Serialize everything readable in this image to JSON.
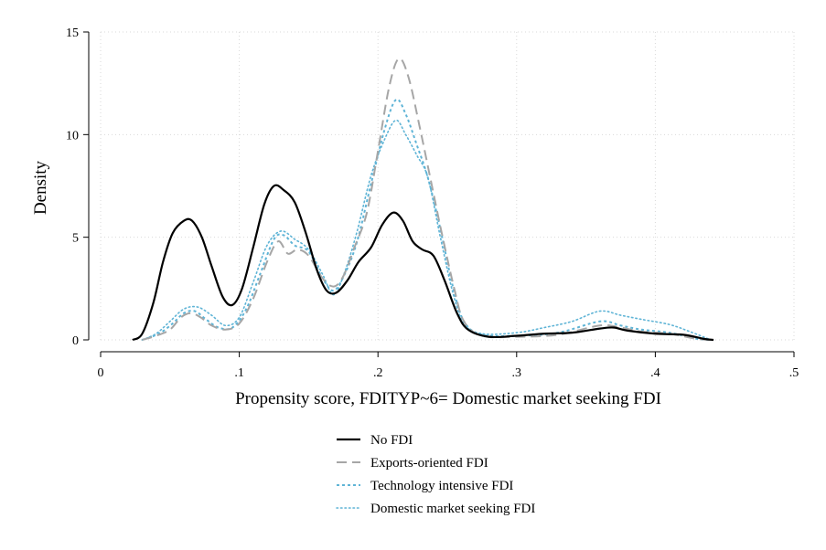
{
  "chart_data": {
    "type": "line",
    "title": "",
    "xlabel": "Propensity score, FDITYP~6= Domestic market seeking FDI",
    "ylabel": "Density",
    "xlim": [
      0,
      0.5
    ],
    "ylim": [
      0,
      15
    ],
    "x_ticks": [
      0,
      0.1,
      0.2,
      0.3,
      0.4,
      0.5
    ],
    "x_tick_labels": [
      "0",
      ".1",
      ".2",
      ".3",
      ".4",
      ".5"
    ],
    "y_ticks": [
      0,
      5,
      10,
      15
    ],
    "y_tick_labels": [
      "0",
      "5",
      "10",
      "15"
    ],
    "grid": true,
    "legend_position": "bottom",
    "series": [
      {
        "name": "No FDI",
        "color": "#000000",
        "style": "solid",
        "points": [
          [
            0.023,
            0.0
          ],
          [
            0.03,
            0.3
          ],
          [
            0.038,
            1.8
          ],
          [
            0.045,
            3.8
          ],
          [
            0.052,
            5.2
          ],
          [
            0.06,
            5.8
          ],
          [
            0.066,
            5.8
          ],
          [
            0.073,
            5.0
          ],
          [
            0.08,
            3.6
          ],
          [
            0.088,
            2.1
          ],
          [
            0.095,
            1.7
          ],
          [
            0.102,
            2.5
          ],
          [
            0.11,
            4.5
          ],
          [
            0.118,
            6.6
          ],
          [
            0.125,
            7.5
          ],
          [
            0.132,
            7.3
          ],
          [
            0.14,
            6.7
          ],
          [
            0.148,
            5.2
          ],
          [
            0.156,
            3.4
          ],
          [
            0.163,
            2.4
          ],
          [
            0.17,
            2.3
          ],
          [
            0.178,
            2.9
          ],
          [
            0.186,
            3.8
          ],
          [
            0.195,
            4.5
          ],
          [
            0.203,
            5.6
          ],
          [
            0.211,
            6.2
          ],
          [
            0.218,
            5.8
          ],
          [
            0.225,
            4.8
          ],
          [
            0.232,
            4.4
          ],
          [
            0.24,
            4.1
          ],
          [
            0.248,
            2.9
          ],
          [
            0.257,
            1.3
          ],
          [
            0.265,
            0.5
          ],
          [
            0.28,
            0.15
          ],
          [
            0.3,
            0.2
          ],
          [
            0.32,
            0.3
          ],
          [
            0.34,
            0.35
          ],
          [
            0.36,
            0.55
          ],
          [
            0.37,
            0.6
          ],
          [
            0.38,
            0.45
          ],
          [
            0.4,
            0.3
          ],
          [
            0.42,
            0.25
          ],
          [
            0.435,
            0.05
          ],
          [
            0.442,
            0.0
          ]
        ]
      },
      {
        "name": "Exports-oriented FDI",
        "color": "#a6a6a6",
        "style": "dashed",
        "points": [
          [
            0.03,
            0.0
          ],
          [
            0.04,
            0.2
          ],
          [
            0.05,
            0.5
          ],
          [
            0.058,
            1.1
          ],
          [
            0.065,
            1.3
          ],
          [
            0.072,
            1.1
          ],
          [
            0.08,
            0.7
          ],
          [
            0.09,
            0.5
          ],
          [
            0.1,
            0.8
          ],
          [
            0.11,
            2.0
          ],
          [
            0.12,
            3.8
          ],
          [
            0.128,
            4.8
          ],
          [
            0.135,
            4.2
          ],
          [
            0.142,
            4.4
          ],
          [
            0.15,
            4.1
          ],
          [
            0.16,
            3.0
          ],
          [
            0.168,
            2.6
          ],
          [
            0.175,
            3.1
          ],
          [
            0.183,
            4.5
          ],
          [
            0.192,
            6.2
          ],
          [
            0.2,
            9.2
          ],
          [
            0.208,
            12.3
          ],
          [
            0.215,
            13.7
          ],
          [
            0.222,
            12.8
          ],
          [
            0.23,
            10.4
          ],
          [
            0.238,
            7.8
          ],
          [
            0.246,
            5.2
          ],
          [
            0.255,
            2.5
          ],
          [
            0.262,
            0.9
          ],
          [
            0.275,
            0.2
          ],
          [
            0.3,
            0.15
          ],
          [
            0.33,
            0.25
          ],
          [
            0.36,
            0.7
          ],
          [
            0.375,
            0.6
          ],
          [
            0.39,
            0.4
          ],
          [
            0.41,
            0.3
          ],
          [
            0.43,
            0.05
          ],
          [
            0.44,
            0.0
          ]
        ]
      },
      {
        "name": "Technology intensive FDI",
        "color": "#5fb4d6",
        "style": "dashed",
        "points": [
          [
            0.03,
            0.0
          ],
          [
            0.042,
            0.3
          ],
          [
            0.052,
            0.8
          ],
          [
            0.06,
            1.3
          ],
          [
            0.068,
            1.4
          ],
          [
            0.076,
            1.0
          ],
          [
            0.085,
            0.6
          ],
          [
            0.095,
            0.6
          ],
          [
            0.105,
            1.5
          ],
          [
            0.115,
            3.2
          ],
          [
            0.125,
            4.9
          ],
          [
            0.132,
            5.1
          ],
          [
            0.14,
            4.6
          ],
          [
            0.15,
            4.3
          ],
          [
            0.16,
            3.0
          ],
          [
            0.168,
            2.4
          ],
          [
            0.176,
            3.2
          ],
          [
            0.185,
            4.8
          ],
          [
            0.195,
            7.6
          ],
          [
            0.205,
            10.3
          ],
          [
            0.213,
            11.7
          ],
          [
            0.22,
            11.0
          ],
          [
            0.228,
            9.5
          ],
          [
            0.236,
            7.9
          ],
          [
            0.245,
            5.4
          ],
          [
            0.254,
            2.6
          ],
          [
            0.262,
            0.9
          ],
          [
            0.275,
            0.25
          ],
          [
            0.3,
            0.2
          ],
          [
            0.33,
            0.35
          ],
          [
            0.36,
            0.9
          ],
          [
            0.375,
            0.7
          ],
          [
            0.39,
            0.5
          ],
          [
            0.41,
            0.35
          ],
          [
            0.43,
            0.05
          ],
          [
            0.44,
            0.0
          ]
        ]
      },
      {
        "name": "Domestic market seeking FDI",
        "color": "#5fb4d6",
        "style": "dotted",
        "points": [
          [
            0.03,
            0.0
          ],
          [
            0.04,
            0.3
          ],
          [
            0.05,
            0.9
          ],
          [
            0.06,
            1.5
          ],
          [
            0.07,
            1.6
          ],
          [
            0.08,
            1.2
          ],
          [
            0.09,
            0.7
          ],
          [
            0.1,
            1.1
          ],
          [
            0.11,
            2.8
          ],
          [
            0.12,
            4.6
          ],
          [
            0.13,
            5.3
          ],
          [
            0.14,
            4.9
          ],
          [
            0.15,
            4.4
          ],
          [
            0.16,
            3.2
          ],
          [
            0.168,
            2.2
          ],
          [
            0.176,
            3.3
          ],
          [
            0.185,
            5.3
          ],
          [
            0.195,
            8.0
          ],
          [
            0.205,
            9.8
          ],
          [
            0.213,
            10.7
          ],
          [
            0.22,
            10.0
          ],
          [
            0.228,
            9.0
          ],
          [
            0.236,
            7.9
          ],
          [
            0.245,
            5.0
          ],
          [
            0.254,
            2.3
          ],
          [
            0.262,
            0.8
          ],
          [
            0.275,
            0.3
          ],
          [
            0.3,
            0.35
          ],
          [
            0.32,
            0.6
          ],
          [
            0.34,
            0.9
          ],
          [
            0.36,
            1.4
          ],
          [
            0.375,
            1.2
          ],
          [
            0.39,
            1.0
          ],
          [
            0.41,
            0.75
          ],
          [
            0.425,
            0.4
          ],
          [
            0.44,
            0.0
          ]
        ]
      }
    ]
  }
}
